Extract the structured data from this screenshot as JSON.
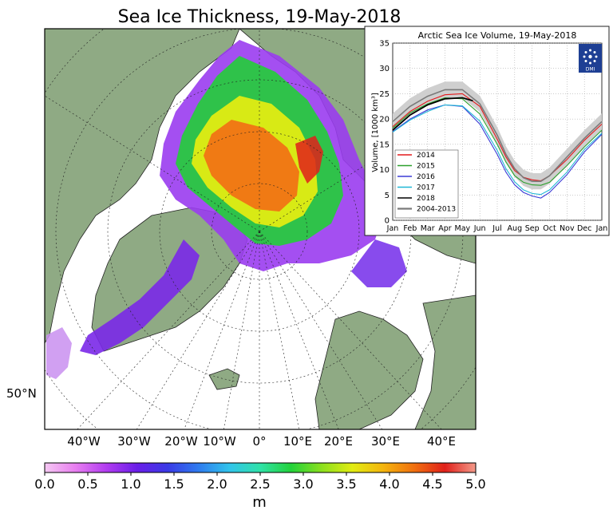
{
  "title": "Sea Ice Thickness, 19-May-2018",
  "map": {
    "lat_label": "50°N",
    "lon_labels": [
      "40°W",
      "30°W",
      "20°W",
      "10°W",
      "0°",
      "10°E",
      "20°E",
      "30°E",
      "40°E"
    ]
  },
  "colorbar": {
    "ticks": [
      "0.0",
      "0.5",
      "1.0",
      "1.5",
      "2.0",
      "2.5",
      "3.0",
      "3.5",
      "4.0",
      "4.5",
      "5.0"
    ],
    "unit": "m",
    "min": 0,
    "max": 5,
    "stops": [
      "#f5c8f2",
      "#e87ef0",
      "#b23cf0",
      "#6a1ee8",
      "#3a3ae6",
      "#2f7cef",
      "#31c4ec",
      "#2fe2a8",
      "#22d23a",
      "#8ce01e",
      "#e2ec12",
      "#f4b40e",
      "#f0700f",
      "#e0201a",
      "#f49a8a"
    ]
  },
  "colors": {
    "land": "#8faa84",
    "ocean": "#ffffff",
    "ice_thin": "#9a3cf0",
    "ice_mid": "#2fc24a",
    "ice_thick": "#f07a14"
  },
  "chart_data": {
    "type": "line",
    "title": "Arctic Sea Ice Volume, 19-May-2018",
    "xlabel": "",
    "ylabel": "Volume, [1000 km³]",
    "categories": [
      "Jan",
      "Feb",
      "Mar",
      "Apr",
      "May",
      "Jun",
      "Jul",
      "Aug",
      "Sep",
      "Oct",
      "Nov",
      "Dec",
      "Jan"
    ],
    "ylim": [
      0,
      35
    ],
    "yticks": [
      "0",
      "5",
      "10",
      "15",
      "20",
      "25",
      "30",
      "35"
    ],
    "grid": true,
    "legend_position": "bottom-left",
    "logo_text": "DMI",
    "series": [
      {
        "name": "2014",
        "color": "#e41a1c",
        "x": [
          0,
          1,
          2,
          3,
          4,
          5,
          6,
          6.5,
          7,
          7.5,
          8,
          8.5,
          9,
          10,
          11,
          12
        ],
        "y": [
          18.5,
          21.5,
          23.5,
          24.8,
          25.0,
          22.5,
          16.0,
          12.5,
          9.8,
          8.5,
          8.0,
          7.8,
          8.8,
          12.0,
          15.8,
          19.0
        ]
      },
      {
        "name": "2015",
        "color": "#2ca02c",
        "x": [
          0,
          1,
          2,
          3,
          4,
          5,
          6,
          6.5,
          7,
          7.5,
          8,
          8.5,
          9,
          10,
          11,
          12
        ],
        "y": [
          18.2,
          21.2,
          23.0,
          24.2,
          24.0,
          21.0,
          15.0,
          11.5,
          8.8,
          7.5,
          7.0,
          6.9,
          7.5,
          10.8,
          14.5,
          17.8
        ]
      },
      {
        "name": "2016",
        "color": "#3b3bd6",
        "x": [
          0,
          1,
          2,
          3,
          4,
          5,
          6,
          6.5,
          7,
          7.5,
          8,
          8.5,
          9,
          10,
          11,
          12
        ],
        "y": [
          17.5,
          20.0,
          21.8,
          22.8,
          22.5,
          19.0,
          13.0,
          9.5,
          7.0,
          5.5,
          4.8,
          4.4,
          5.5,
          9.0,
          13.5,
          17.0
        ]
      },
      {
        "name": "2017",
        "color": "#1fb7d6",
        "x": [
          0,
          1,
          2,
          3,
          4,
          5,
          6,
          6.5,
          7,
          7.5,
          8,
          8.5,
          9,
          10,
          11,
          12
        ],
        "y": [
          17.4,
          19.8,
          21.5,
          22.8,
          22.6,
          19.6,
          13.8,
          10.2,
          7.6,
          6.0,
          5.3,
          5.1,
          6.0,
          9.5,
          14.0,
          17.2
        ]
      },
      {
        "name": "2018",
        "color": "#000000",
        "x": [
          0,
          1,
          2,
          3,
          4,
          4.6
        ],
        "y": [
          17.8,
          20.8,
          22.8,
          24.0,
          24.2,
          23.6
        ]
      },
      {
        "name": "2004-2013",
        "color": "#7a7a7a",
        "x": [
          0,
          1,
          2,
          3,
          4,
          5,
          6,
          6.5,
          7,
          7.5,
          8,
          8.5,
          9,
          10,
          11,
          12
        ],
        "y": [
          19.5,
          22.5,
          24.5,
          25.8,
          25.8,
          23.0,
          16.8,
          13.0,
          10.2,
          8.4,
          7.7,
          7.7,
          8.8,
          12.5,
          16.2,
          19.5
        ],
        "band": 1.6
      }
    ]
  }
}
